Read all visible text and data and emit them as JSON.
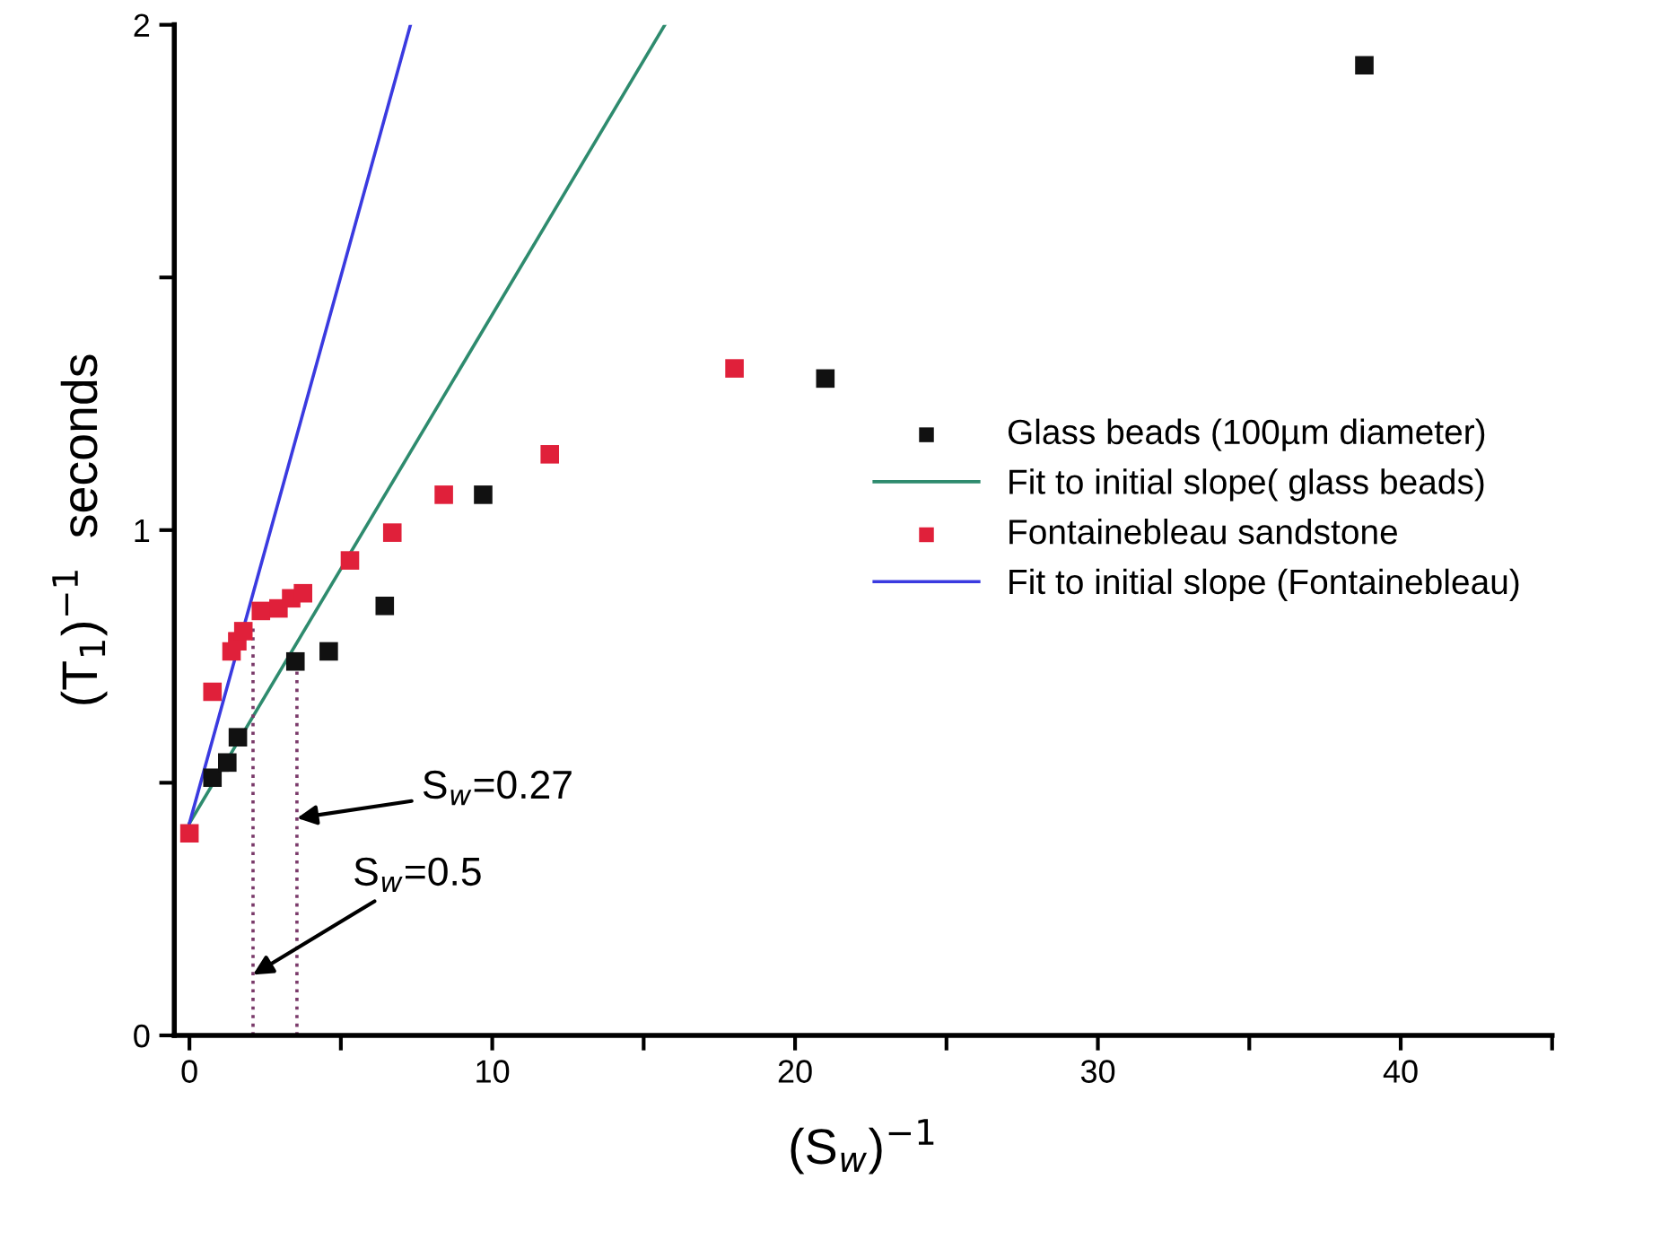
{
  "chart_data": {
    "type": "scatter",
    "xlabel": "(S$_{w}$)$^{−1}$",
    "ylabel": "(T$_{1}$)$^{−1}$  seconds",
    "xlim": [
      -0.5,
      45
    ],
    "ylim": [
      0,
      2
    ],
    "xticks": [
      0,
      {
        "value": 5,
        "label": null
      },
      10,
      {
        "value": 15,
        "label": null
      },
      20,
      {
        "value": 25,
        "label": null
      },
      30,
      {
        "value": 35,
        "label": null
      },
      40,
      {
        "value": 45,
        "label": null
      }
    ],
    "yticks": [
      0,
      {
        "value": 0.5,
        "label": null
      },
      1,
      {
        "value": 1.5,
        "label": null
      },
      2
    ],
    "grid": false,
    "legend": "right",
    "series": [
      {
        "name": "Glass beads (100µm diameter)",
        "marker": "square",
        "color": "#111111",
        "x": [
          0.76,
          1.25,
          1.6,
          3.5,
          4.6,
          6.45,
          9.7,
          21.0,
          38.8
        ],
        "values": [
          0.51,
          0.54,
          0.59,
          0.74,
          0.76,
          0.85,
          1.07,
          1.3,
          1.92
        ]
      },
      {
        "name": "Fit to initial slope( glass beads)",
        "type": "line",
        "line_style": "solid",
        "color": "#2e8b6e",
        "x": [
          0,
          15.7
        ],
        "values": [
          0.42,
          2.0
        ]
      },
      {
        "name": "Fontainebleau sandstone",
        "marker": "square",
        "color": "#e0203a",
        "x": [
          0,
          0.76,
          1.39,
          1.58,
          1.78,
          2.36,
          2.94,
          3.36,
          3.75,
          5.3,
          6.7,
          8.4,
          11.9,
          18.0
        ],
        "values": [
          0.4,
          0.68,
          0.76,
          0.78,
          0.8,
          0.84,
          0.845,
          0.865,
          0.875,
          0.94,
          0.995,
          1.07,
          1.15,
          1.32
        ]
      },
      {
        "name": "Fit to initial slope (Fontainebleau)",
        "type": "line",
        "line_style": "solid",
        "color": "#3a3ae0",
        "x": [
          0,
          7.3
        ],
        "values": [
          0.42,
          2.0
        ]
      },
      {
        "type": "line",
        "line_style": "dotted",
        "color": "#7a3a6a",
        "x": [
          2.1,
          2.1
        ],
        "values": [
          0,
          0.81
        ]
      },
      {
        "type": "line",
        "line_style": "dotted",
        "color": "#7a3a6a",
        "x": [
          3.55,
          3.55
        ],
        "values": [
          0,
          0.74
        ]
      }
    ],
    "annotations": [
      {
        "text": "S$_{w}$=0.27",
        "x": 3.55,
        "y": 0.43
      },
      {
        "text": "S$_{w}$=0.5",
        "x": 2.1,
        "y": 0.12
      }
    ]
  }
}
